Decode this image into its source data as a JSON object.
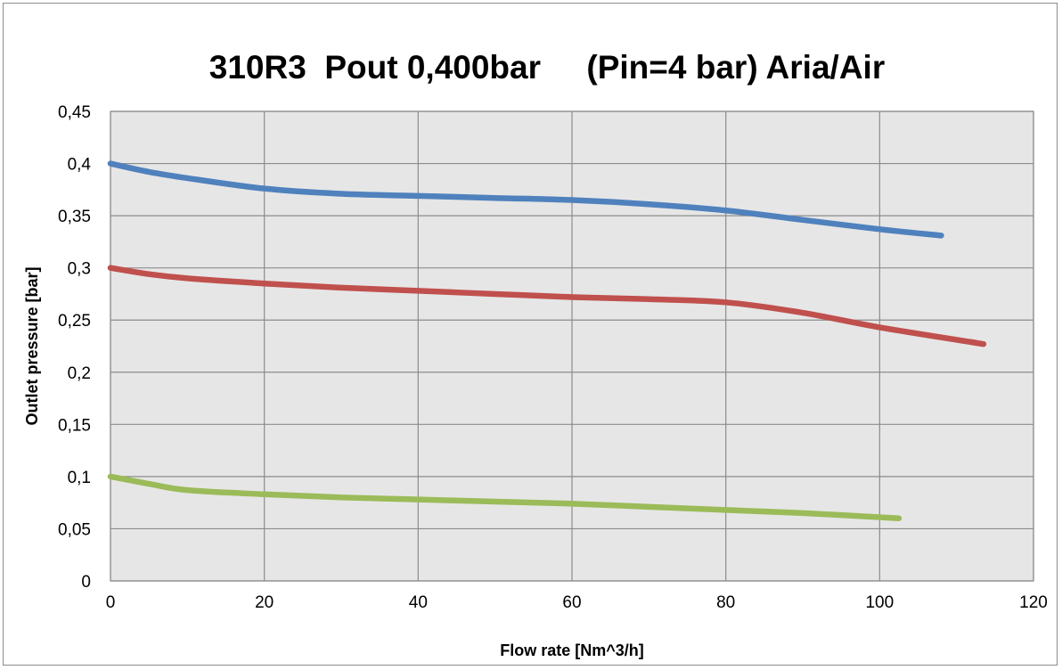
{
  "chart_data": {
    "type": "line",
    "title": "310R3  Pout 0,400bar     (Pin=4 bar) Aria/Air",
    "xlabel": "Flow rate [Nm^3/h]",
    "ylabel": "Outlet pressure [bar]",
    "xlim": [
      0,
      120
    ],
    "ylim": [
      0,
      0.45
    ],
    "x_ticks": [
      0,
      20,
      40,
      60,
      80,
      100,
      120
    ],
    "x_tick_labels": [
      "0",
      "20",
      "40",
      "60",
      "80",
      "100",
      "120"
    ],
    "y_ticks": [
      0,
      0.05,
      0.1,
      0.15,
      0.2,
      0.25,
      0.3,
      0.35,
      0.4,
      0.45
    ],
    "y_tick_labels": [
      "0",
      "0,05",
      "0,1",
      "0,15",
      "0,2",
      "0,25",
      "0,3",
      "0,35",
      "0,4",
      "0,45"
    ],
    "grid": true,
    "plot_background": "#e6e6e6",
    "grid_color": "#8c8c8c",
    "legend": "none",
    "series": [
      {
        "color": "#4f81bd",
        "x": [
          0,
          5,
          10,
          20,
          30,
          40,
          50,
          60,
          70,
          80,
          90,
          100,
          108
        ],
        "y": [
          0.4,
          0.392,
          0.386,
          0.376,
          0.371,
          0.369,
          0.367,
          0.365,
          0.361,
          0.355,
          0.346,
          0.337,
          0.331
        ]
      },
      {
        "color": "#c0504d",
        "x": [
          0,
          5,
          10,
          20,
          30,
          40,
          50,
          60,
          70,
          80,
          90,
          100,
          113.5
        ],
        "y": [
          0.3,
          0.294,
          0.29,
          0.285,
          0.281,
          0.278,
          0.275,
          0.272,
          0.27,
          0.267,
          0.257,
          0.243,
          0.227
        ]
      },
      {
        "color": "#9bbb59",
        "x": [
          0,
          5,
          10,
          20,
          30,
          40,
          50,
          60,
          70,
          80,
          90,
          102.5
        ],
        "y": [
          0.1,
          0.093,
          0.087,
          0.083,
          0.08,
          0.078,
          0.076,
          0.074,
          0.071,
          0.068,
          0.065,
          0.06
        ]
      }
    ]
  }
}
